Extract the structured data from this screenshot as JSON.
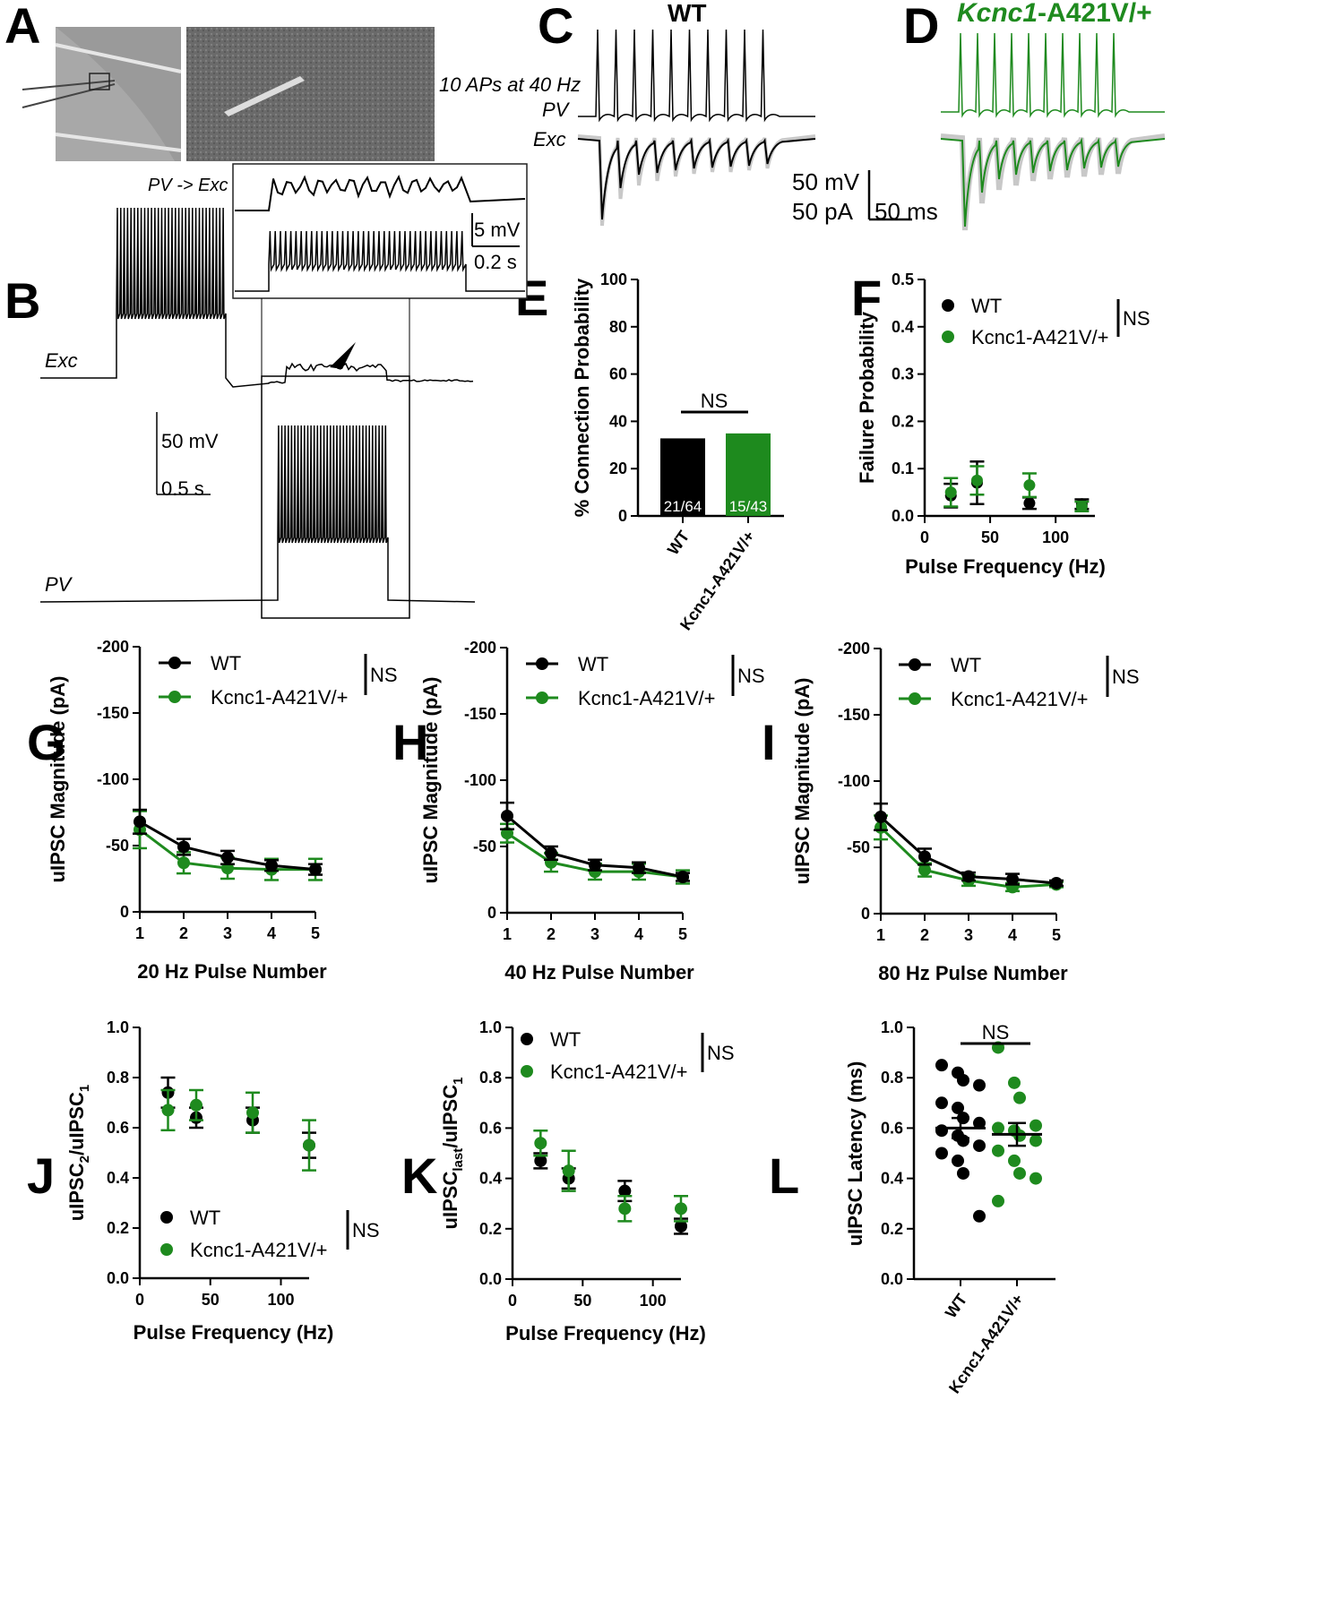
{
  "colors": {
    "wt": "#000000",
    "mut": "#1e8a1e",
    "grey": "#c8c8c8"
  },
  "panels": {
    "A": "A",
    "B": "B",
    "C": "C",
    "D": "D",
    "E": "E",
    "F": "F",
    "G": "G",
    "H": "H",
    "I": "I",
    "J": "J",
    "K": "K",
    "L": "L"
  },
  "A": {
    "stim_label": "10 APs at 40 Hz"
  },
  "B": {
    "conn_label": "PV -> Exc",
    "exc_label": "Exc",
    "pv_label": "PV",
    "scale_mv": "50 mV",
    "scale_s": "0.5 s",
    "inset_mv": "5 mV",
    "inset_s": "0.2 s"
  },
  "C": {
    "title": "WT",
    "pv_label": "PV",
    "exc_label": "Exc",
    "scale_mv": "50 mV",
    "scale_pa": "50 pA",
    "scale_ms": "50 ms"
  },
  "D": {
    "title_gene": "Kcnc1",
    "title_rest": "-A421V/+"
  },
  "chart_data": [
    {
      "panel": "E",
      "type": "bar",
      "categories": [
        "WT",
        "Kcnc1-A421V/+"
      ],
      "values": [
        32.8,
        34.9
      ],
      "bar_labels": [
        "21/64",
        "15/43"
      ],
      "ylabel": "% Connection Probability",
      "ylim": [
        0,
        100
      ],
      "yticks": [
        "0",
        "20",
        "40",
        "60",
        "80",
        "100"
      ],
      "annotation": "NS"
    },
    {
      "panel": "F",
      "type": "scatter",
      "xlabel": "Pulse Frequency (Hz)",
      "ylabel": "Failure Probability",
      "xlim": [
        0,
        130
      ],
      "ylim": [
        0,
        0.5
      ],
      "xticks": [
        "0",
        "50",
        "100"
      ],
      "yticks": [
        "0.0",
        "0.1",
        "0.2",
        "0.3",
        "0.4",
        "0.5"
      ],
      "series": [
        {
          "name": "WT",
          "x": [
            20,
            40,
            80,
            120
          ],
          "y": [
            0.043,
            0.07,
            0.027,
            0.025
          ],
          "err": [
            0.025,
            0.045,
            0.012,
            0.01
          ]
        },
        {
          "name": "Kcnc1-A421V/+",
          "x": [
            20,
            40,
            80,
            120
          ],
          "y": [
            0.05,
            0.075,
            0.065,
            0.02
          ],
          "err": [
            0.03,
            0.03,
            0.025,
            0.01
          ]
        }
      ],
      "annotation": "NS"
    },
    {
      "panel": "G",
      "type": "line",
      "xlabel": "20 Hz Pulse Number",
      "ylabel": "uIPSC Magnitude (pA)",
      "xlim": [
        1,
        5
      ],
      "ylim": [
        0,
        -200
      ],
      "xticks": [
        "1",
        "2",
        "3",
        "4",
        "5"
      ],
      "yticks": [
        "0",
        "-50",
        "-100",
        "-150",
        "-200"
      ],
      "series": [
        {
          "name": "WT",
          "x": [
            1,
            2,
            3,
            4,
            5
          ],
          "y": [
            -68,
            -49,
            -41,
            -35,
            -32
          ],
          "err": [
            9,
            6,
            5,
            4,
            4
          ]
        },
        {
          "name": "Kcnc1-A421V/+",
          "x": [
            1,
            2,
            3,
            4,
            5
          ],
          "y": [
            -62,
            -37,
            -33,
            -32,
            -32
          ],
          "err": [
            14,
            8,
            8,
            8,
            8
          ]
        }
      ],
      "annotation": "NS"
    },
    {
      "panel": "H",
      "type": "line",
      "xlabel": "40 Hz Pulse Number",
      "ylabel": "uIPSC Magnitude (pA)",
      "xlim": [
        1,
        5
      ],
      "ylim": [
        0,
        -200
      ],
      "xticks": [
        "1",
        "2",
        "3",
        "4",
        "5"
      ],
      "yticks": [
        "0",
        "-50",
        "-100",
        "-150",
        "-200"
      ],
      "series": [
        {
          "name": "WT",
          "x": [
            1,
            2,
            3,
            4,
            5
          ],
          "y": [
            -73,
            -45,
            -36,
            -34,
            -27
          ],
          "err": [
            10,
            5,
            4,
            4,
            3
          ]
        },
        {
          "name": "Kcnc1-A421V/+",
          "x": [
            1,
            2,
            3,
            4,
            5
          ],
          "y": [
            -60,
            -38,
            -31,
            -31,
            -27
          ],
          "err": [
            7,
            7,
            6,
            6,
            5
          ]
        }
      ],
      "annotation": "NS"
    },
    {
      "panel": "I",
      "type": "line",
      "xlabel": "80 Hz Pulse Number",
      "ylabel": "uIPSC Magnitude (pA)",
      "xlim": [
        1,
        5
      ],
      "ylim": [
        0,
        -200
      ],
      "xticks": [
        "1",
        "2",
        "3",
        "4",
        "5"
      ],
      "yticks": [
        "0",
        "-50",
        "-100",
        "-150",
        "-200"
      ],
      "series": [
        {
          "name": "WT",
          "x": [
            1,
            2,
            3,
            4,
            5
          ],
          "y": [
            -73,
            -43,
            -28,
            -26,
            -23
          ],
          "err": [
            10,
            6,
            3,
            4,
            2
          ]
        },
        {
          "name": "Kcnc1-A421V/+",
          "x": [
            1,
            2,
            3,
            4,
            5
          ],
          "y": [
            -65,
            -33,
            -25,
            -20,
            -22
          ],
          "err": [
            9,
            5,
            4,
            3,
            2
          ]
        }
      ],
      "annotation": "NS"
    },
    {
      "panel": "J",
      "type": "scatter",
      "xlabel": "Pulse Frequency (Hz)",
      "ylabel_main": "uIPSC",
      "ylabel_sub1": "2",
      "ylabel_mid": "/uIPSC",
      "ylabel_sub2": "1",
      "xlim": [
        0,
        120
      ],
      "ylim": [
        0,
        1.0
      ],
      "xticks": [
        "0",
        "50",
        "100"
      ],
      "yticks": [
        "0.0",
        "0.2",
        "0.4",
        "0.6",
        "0.8",
        "1.0"
      ],
      "series": [
        {
          "name": "WT",
          "x": [
            20,
            40,
            80,
            120
          ],
          "y": [
            0.74,
            0.64,
            0.63,
            0.53
          ],
          "err": [
            0.06,
            0.04,
            0.05,
            0.05
          ]
        },
        {
          "name": "Kcnc1-A421V/+",
          "x": [
            20,
            40,
            80,
            120
          ],
          "y": [
            0.67,
            0.69,
            0.66,
            0.53
          ],
          "err": [
            0.08,
            0.06,
            0.08,
            0.1
          ]
        }
      ],
      "annotation": "NS"
    },
    {
      "panel": "K",
      "type": "scatter",
      "xlabel": "Pulse Frequency (Hz)",
      "ylabel_main": "uIPSC",
      "ylabel_sub1": "last",
      "ylabel_mid": "/uIPSC",
      "ylabel_sub2": "1",
      "xlim": [
        0,
        120
      ],
      "ylim": [
        0,
        1.0
      ],
      "xticks": [
        "0",
        "50",
        "100"
      ],
      "yticks": [
        "0.0",
        "0.2",
        "0.4",
        "0.6",
        "0.8",
        "1.0"
      ],
      "series": [
        {
          "name": "WT",
          "x": [
            20,
            40,
            80,
            120
          ],
          "y": [
            0.47,
            0.4,
            0.35,
            0.21
          ],
          "err": [
            0.03,
            0.04,
            0.04,
            0.03
          ]
        },
        {
          "name": "Kcnc1-A421V/+",
          "x": [
            20,
            40,
            80,
            120
          ],
          "y": [
            0.54,
            0.43,
            0.28,
            0.28
          ],
          "err": [
            0.05,
            0.08,
            0.05,
            0.05
          ]
        }
      ],
      "annotation": "NS"
    },
    {
      "panel": "L",
      "type": "scatter",
      "categories": [
        "WT",
        "Kcnc1-A421V/+"
      ],
      "ylabel": "uIPSC Latency (ms)",
      "ylim": [
        0,
        1.0
      ],
      "yticks": [
        "0.0",
        "0.2",
        "0.4",
        "0.6",
        "0.8",
        "1.0"
      ],
      "series": [
        {
          "name": "WT",
          "values": [
            0.85,
            0.82,
            0.79,
            0.77,
            0.7,
            0.68,
            0.64,
            0.62,
            0.59,
            0.57,
            0.55,
            0.53,
            0.5,
            0.47,
            0.42,
            0.25
          ],
          "mean": 0.6,
          "sem": 0.04
        },
        {
          "name": "Kcnc1-A421V/+",
          "values": [
            0.92,
            0.78,
            0.72,
            0.61,
            0.6,
            0.59,
            0.57,
            0.55,
            0.51,
            0.47,
            0.42,
            0.4,
            0.31
          ],
          "mean": 0.575,
          "sem": 0.045
        }
      ],
      "annotation": "NS"
    }
  ]
}
